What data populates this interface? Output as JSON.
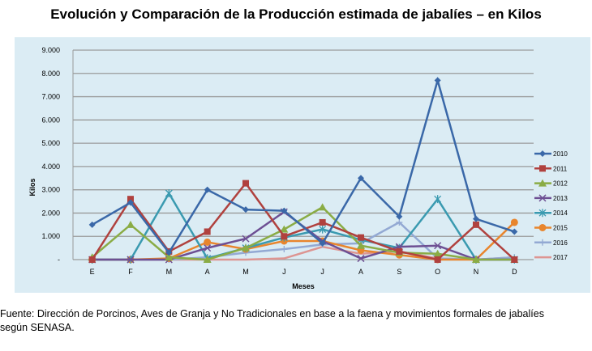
{
  "chart_data": {
    "type": "line",
    "title": "Evolución y Comparación de la Producción estimada de jabalíes – en Kilos",
    "xlabel": "Meses",
    "ylabel": "Kilos",
    "categories": [
      "E",
      "F",
      "M",
      "A",
      "M",
      "J",
      "J",
      "A",
      "S",
      "O",
      "N",
      "D"
    ],
    "yticks": [
      "-",
      "1.000",
      "2.000",
      "3.000",
      "4.000",
      "5.000",
      "6.000",
      "7.000",
      "8.000",
      "9.000"
    ],
    "ylim": [
      0,
      9000
    ],
    "grid": true,
    "legend": "right",
    "series": [
      {
        "name": "2010",
        "color": "#3a68a8",
        "marker": "diamond",
        "values": [
          1500,
          2450,
          300,
          3000,
          2150,
          2100,
          700,
          3500,
          1850,
          7700,
          1750,
          1200
        ]
      },
      {
        "name": "2011",
        "color": "#b0413e",
        "marker": "square",
        "values": [
          0,
          2600,
          350,
          1200,
          3280,
          1000,
          1600,
          950,
          350,
          0,
          1500,
          0
        ]
      },
      {
        "name": "2012",
        "color": "#8aac45",
        "marker": "triangle",
        "values": [
          100,
          1500,
          100,
          0,
          500,
          1300,
          2250,
          600,
          300,
          250,
          0,
          0
        ]
      },
      {
        "name": "2013",
        "color": "#6d4f93",
        "marker": "x",
        "values": [
          0,
          0,
          0,
          500,
          900,
          2050,
          800,
          50,
          550,
          600,
          0,
          0
        ]
      },
      {
        "name": "2014",
        "color": "#3a9ab0",
        "marker": "star",
        "values": [
          0,
          0,
          2850,
          50,
          500,
          950,
          1300,
          850,
          500,
          2600,
          0,
          0
        ]
      },
      {
        "name": "2015",
        "color": "#e8852d",
        "marker": "circle",
        "values": [
          0,
          0,
          50,
          750,
          450,
          800,
          800,
          400,
          200,
          0,
          0,
          1600
        ]
      },
      {
        "name": "2016",
        "color": "#93a9d3",
        "marker": "plus",
        "values": [
          0,
          0,
          0,
          100,
          300,
          450,
          650,
          700,
          1600,
          50,
          0,
          100
        ]
      },
      {
        "name": "2017",
        "color": "#dd9592",
        "marker": "none",
        "values": [
          0,
          0,
          0,
          0,
          0,
          50,
          550,
          250,
          350,
          50,
          0,
          100
        ]
      }
    ]
  },
  "footnote": {
    "line1": "Fuente: Dirección de Porcinos, Aves de Granja y No Tradicionales en base a la faena y movimientos formales de jabalíes",
    "line2": "según SENASA."
  }
}
